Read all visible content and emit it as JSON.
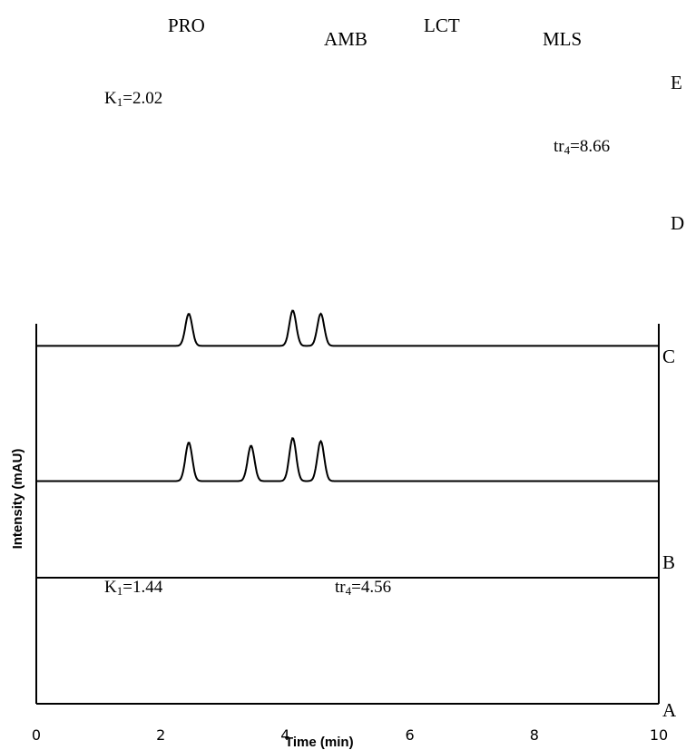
{
  "compound_labels": {
    "pro": "PRO",
    "amb": "AMB",
    "lct": "LCT",
    "mls": "MLS"
  },
  "trace_labels": {
    "e": "E",
    "d": "D",
    "c": "C",
    "b": "B",
    "a": "A"
  },
  "annotations": {
    "k1_upper_base": "K",
    "k1_upper_sub": "1",
    "k1_upper_value": "=2.02",
    "tr4_upper_base": "tr",
    "tr4_upper_sub": "4",
    "tr4_upper_value": "=8.66",
    "k1_lower_base": "K",
    "k1_lower_sub": "1",
    "k1_lower_value": "=1.44",
    "tr4_lower_base": "tr",
    "tr4_lower_sub": "4",
    "tr4_lower_value": "=4.56"
  },
  "chart_data": {
    "type": "line",
    "xlabel": "Time (min)",
    "ylabel": "Intensity (mAU)",
    "xlim": [
      0,
      10
    ],
    "x_ticks": [
      "0",
      "2",
      "4",
      "6",
      "8",
      "10"
    ],
    "grid": false,
    "series": [
      {
        "name": "C",
        "baseline": 0.36,
        "peaks": [
          {
            "x": 2.45,
            "h": 0.05
          },
          {
            "x": 4.12,
            "h": 0.055
          },
          {
            "x": 4.57,
            "h": 0.05
          }
        ]
      },
      {
        "name": "B",
        "baseline": 0.15,
        "peaks": [
          {
            "x": 2.45,
            "h": 0.06
          },
          {
            "x": 3.45,
            "h": 0.055
          },
          {
            "x": 4.12,
            "h": 0.067
          },
          {
            "x": 4.57,
            "h": 0.062
          }
        ]
      },
      {
        "name": "A",
        "baseline": 0.0,
        "peaks": []
      }
    ]
  }
}
